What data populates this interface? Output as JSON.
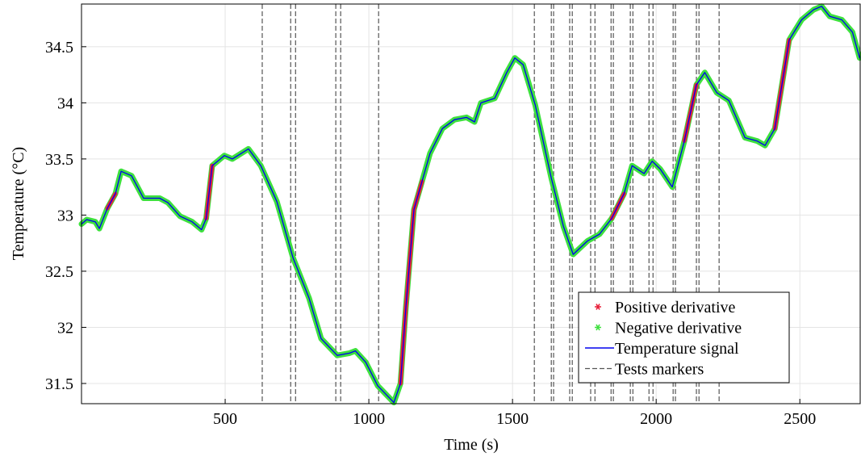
{
  "chart_data": {
    "type": "line",
    "xlabel": "Time (s)",
    "ylabel": "Temperature (°C)",
    "x": [
      0,
      18,
      48,
      62,
      90,
      118,
      138,
      174,
      216,
      272,
      301,
      343,
      385,
      418,
      434,
      455,
      497,
      525,
      581,
      624,
      680,
      736,
      792,
      834,
      890,
      933,
      953,
      989,
      1031,
      1087,
      1110,
      1129,
      1157,
      1185,
      1213,
      1256,
      1298,
      1340,
      1368,
      1390,
      1438,
      1480,
      1508,
      1537,
      1579,
      1635,
      1677,
      1711,
      1761,
      1803,
      1845,
      1888,
      1916,
      1958,
      1986,
      2014,
      2056,
      2098,
      2140,
      2169,
      2211,
      2253,
      2309,
      2351,
      2379,
      2413,
      2463,
      2506,
      2548,
      2576,
      2604,
      2646,
      2683,
      2708
    ],
    "series": [
      {
        "name": "Positive derivative",
        "color": "#e8203a",
        "values": [
          null,
          null,
          null,
          null,
          33.06,
          33.19,
          null,
          null,
          null,
          null,
          null,
          null,
          null,
          null,
          32.97,
          33.44,
          null,
          null,
          null,
          null,
          null,
          null,
          null,
          null,
          null,
          null,
          null,
          null,
          null,
          null,
          31.5,
          32.18,
          33.05,
          33.3,
          null,
          null,
          null,
          null,
          null,
          null,
          null,
          null,
          null,
          null,
          null,
          null,
          null,
          null,
          null,
          null,
          32.97,
          33.19,
          null,
          null,
          null,
          null,
          null,
          33.66,
          34.16,
          null,
          null,
          null,
          null,
          null,
          null,
          33.77,
          34.56,
          null,
          null,
          null,
          null,
          null,
          null,
          null
        ]
      },
      {
        "name": "Negative derivative",
        "color": "#3ee03e",
        "values": [
          32.92,
          32.96,
          32.94,
          32.88,
          33.06,
          33.19,
          33.39,
          33.35,
          33.15,
          33.15,
          33.11,
          32.99,
          32.94,
          32.87,
          32.97,
          33.44,
          33.53,
          33.5,
          33.59,
          33.44,
          33.12,
          32.62,
          32.26,
          31.9,
          31.75,
          31.77,
          31.79,
          31.69,
          31.48,
          31.33,
          31.5,
          32.18,
          33.05,
          33.3,
          33.55,
          33.77,
          33.85,
          33.87,
          33.83,
          34.0,
          34.04,
          34.27,
          34.4,
          34.34,
          33.98,
          33.33,
          32.9,
          32.65,
          32.77,
          32.83,
          32.97,
          33.19,
          33.44,
          33.37,
          33.48,
          33.41,
          33.25,
          33.66,
          34.16,
          34.27,
          34.09,
          34.02,
          33.69,
          33.66,
          33.62,
          33.77,
          34.56,
          34.74,
          34.83,
          34.86,
          34.77,
          34.74,
          34.63,
          34.4
        ]
      },
      {
        "name": "Temperature signal",
        "color": "#0000ee",
        "values": [
          32.92,
          32.96,
          32.94,
          32.88,
          33.06,
          33.19,
          33.39,
          33.35,
          33.15,
          33.15,
          33.11,
          32.99,
          32.94,
          32.87,
          32.97,
          33.44,
          33.53,
          33.5,
          33.59,
          33.44,
          33.12,
          32.62,
          32.26,
          31.9,
          31.75,
          31.77,
          31.79,
          31.69,
          31.48,
          31.33,
          31.5,
          32.18,
          33.05,
          33.3,
          33.55,
          33.77,
          33.85,
          33.87,
          33.83,
          34.0,
          34.04,
          34.27,
          34.4,
          34.34,
          33.98,
          33.33,
          32.9,
          32.65,
          32.77,
          32.83,
          32.97,
          33.19,
          33.44,
          33.37,
          33.48,
          33.41,
          33.25,
          33.66,
          34.16,
          34.27,
          34.09,
          34.02,
          33.69,
          33.66,
          33.62,
          33.77,
          34.56,
          34.74,
          34.83,
          34.86,
          34.77,
          34.74,
          34.63,
          34.4
        ]
      }
    ],
    "test_markers": {
      "name": "Tests markers",
      "color": "#555555",
      "x": [
        629,
        728,
        745,
        885,
        902,
        1034,
        1576,
        1635,
        1643,
        1699,
        1708,
        1772,
        1787,
        1843,
        1851,
        1910,
        1919,
        1975,
        1989,
        2059,
        2067,
        2140,
        2149,
        2219
      ]
    },
    "xlim": [
      0,
      2710
    ],
    "xticks": [
      500,
      1000,
      1500,
      2000,
      2500
    ],
    "ylim": [
      31.32,
      34.88
    ],
    "yticks": [
      31.5,
      32,
      32.5,
      33,
      33.5,
      34,
      34.5
    ],
    "grid": true,
    "legend": "lower right"
  }
}
